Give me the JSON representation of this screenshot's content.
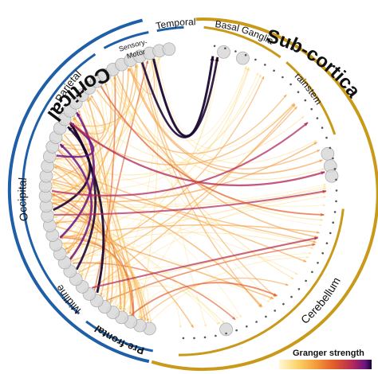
{
  "hemispheres": {
    "cortical": "Cortical",
    "subcortical": "Sub-cortical"
  },
  "regions": {
    "parietal": "Parietal",
    "occipital": "Occipital",
    "midline": "Midline",
    "prefrontal": "Pre-frontal",
    "sensory_motor_1": "Sensory-",
    "sensory_motor_2": "Motor",
    "temporal": "Temporal",
    "basal_ganglia": "Basal Ganglia",
    "brainstem": "Brainstem",
    "cerebellum": "Cerebellum"
  },
  "legend": {
    "title": "Granger strength",
    "colors": [
      "#fff8d6",
      "#fbd36a",
      "#f49a3a",
      "#e05a2a",
      "#b3285a",
      "#6a1480",
      "#1a0530"
    ]
  },
  "colors": {
    "cortical_arc": "#1f5fa8",
    "subcortical_arc": "#c99a1a"
  }
}
